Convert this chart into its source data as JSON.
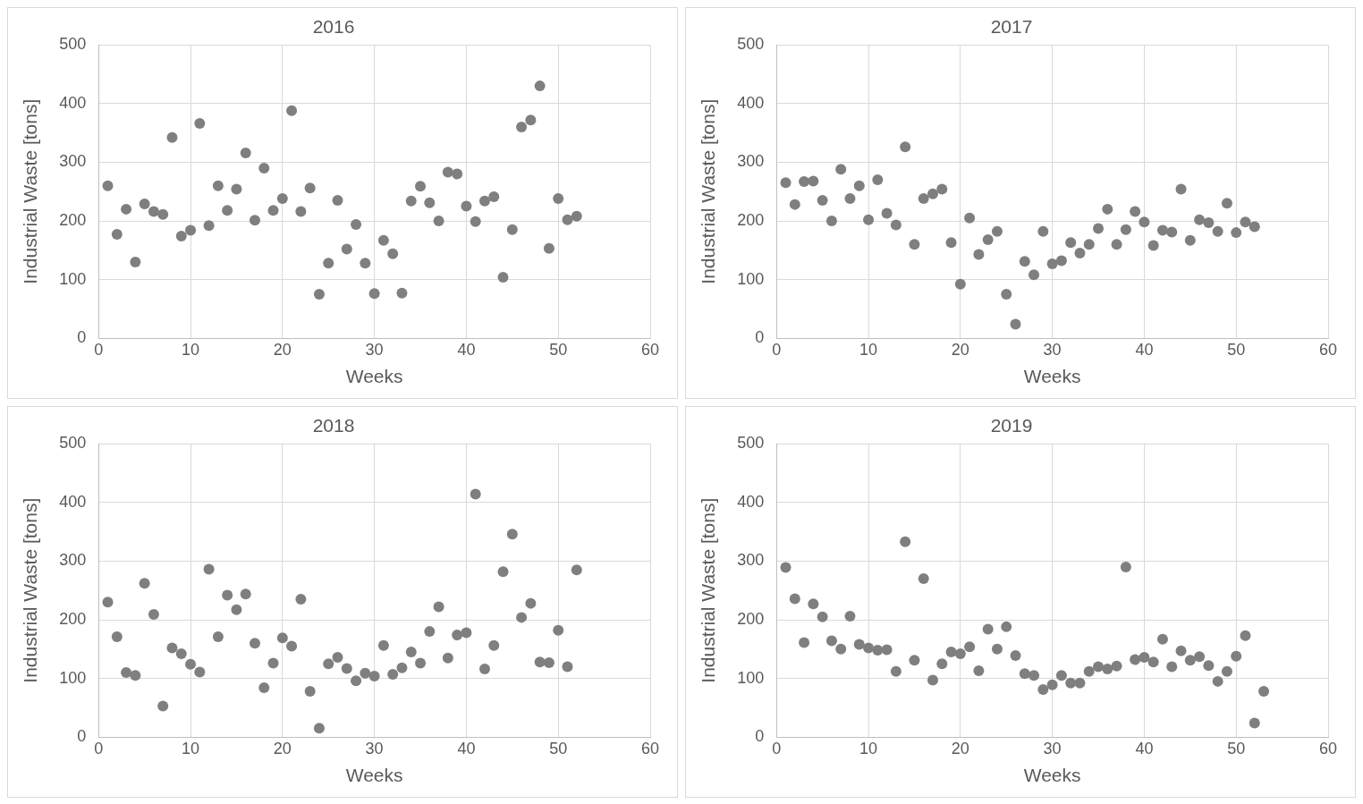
{
  "chart_data": [
    {
      "type": "scatter",
      "title": "2016",
      "xlabel": "Weeks",
      "ylabel": "Industrial Waste [tons]",
      "xlim": [
        0,
        60
      ],
      "xticks": [
        0,
        10,
        20,
        30,
        40,
        50,
        60
      ],
      "ylim": [
        0,
        500
      ],
      "yticks": [
        0,
        100,
        200,
        300,
        400,
        500
      ],
      "grid": true,
      "legend": false,
      "marker": "circle",
      "series": [
        {
          "color": "#7f7f7f",
          "x": [
            1,
            2,
            3,
            4,
            5,
            6,
            7,
            8,
            9,
            10,
            11,
            12,
            13,
            14,
            15,
            16,
            17,
            18,
            19,
            20,
            21,
            22,
            23,
            24,
            25,
            26,
            27,
            28,
            29,
            30,
            31,
            32,
            33,
            34,
            35,
            36,
            37,
            38,
            39,
            40,
            41,
            42,
            43,
            44,
            45,
            46,
            47,
            48,
            49,
            50,
            51,
            52
          ],
          "values": [
            260,
            177,
            220,
            130,
            229,
            216,
            211,
            342,
            174,
            184,
            366,
            192,
            260,
            218,
            254,
            316,
            201,
            290,
            218,
            238,
            388,
            216,
            256,
            75,
            128,
            235,
            152,
            194,
            128,
            76,
            167,
            144,
            77,
            234,
            259,
            231,
            200,
            283,
            280,
            225,
            199,
            234,
            241,
            104,
            185,
            360,
            372,
            430,
            153,
            238,
            202,
            208
          ]
        }
      ]
    },
    {
      "type": "scatter",
      "title": "2017",
      "xlabel": "Weeks",
      "ylabel": "Industrial Waste [tons]",
      "xlim": [
        0,
        60
      ],
      "xticks": [
        0,
        10,
        20,
        30,
        40,
        50,
        60
      ],
      "ylim": [
        0,
        500
      ],
      "yticks": [
        0,
        100,
        200,
        300,
        400,
        500
      ],
      "grid": true,
      "legend": false,
      "marker": "circle",
      "series": [
        {
          "color": "#7f7f7f",
          "x": [
            1,
            2,
            3,
            4,
            5,
            6,
            7,
            8,
            9,
            10,
            11,
            12,
            13,
            14,
            15,
            16,
            17,
            18,
            19,
            20,
            21,
            22,
            23,
            24,
            25,
            26,
            27,
            28,
            29,
            30,
            31,
            32,
            33,
            34,
            35,
            36,
            37,
            38,
            39,
            40,
            41,
            42,
            43,
            44,
            45,
            46,
            47,
            48,
            49,
            50,
            51,
            52
          ],
          "values": [
            265,
            228,
            267,
            268,
            235,
            200,
            288,
            238,
            260,
            202,
            270,
            213,
            193,
            326,
            160,
            238,
            246,
            254,
            163,
            92,
            205,
            143,
            168,
            182,
            75,
            24,
            131,
            108,
            182,
            127,
            132,
            163,
            145,
            160,
            187,
            220,
            160,
            185,
            216,
            198,
            158,
            184,
            181,
            254,
            167,
            202,
            197,
            182,
            230,
            180,
            198,
            190
          ]
        }
      ]
    },
    {
      "type": "scatter",
      "title": "2018",
      "xlabel": "Weeks",
      "ylabel": "Industrial Waste [tons]",
      "xlim": [
        0,
        60
      ],
      "xticks": [
        0,
        10,
        20,
        30,
        40,
        50,
        60
      ],
      "ylim": [
        0,
        500
      ],
      "yticks": [
        0,
        100,
        200,
        300,
        400,
        500
      ],
      "grid": true,
      "legend": false,
      "marker": "circle",
      "series": [
        {
          "color": "#7f7f7f",
          "x": [
            1,
            2,
            3,
            4,
            5,
            6,
            7,
            8,
            9,
            10,
            11,
            12,
            13,
            14,
            15,
            16,
            17,
            18,
            19,
            20,
            21,
            22,
            23,
            24,
            25,
            26,
            27,
            28,
            29,
            30,
            31,
            32,
            33,
            34,
            35,
            36,
            37,
            38,
            39,
            40,
            41,
            42,
            43,
            44,
            45,
            46,
            47,
            48,
            49,
            50,
            51,
            52
          ],
          "values": [
            230,
            171,
            110,
            105,
            262,
            209,
            53,
            152,
            142,
            124,
            111,
            286,
            171,
            242,
            217,
            244,
            160,
            84,
            126,
            169,
            155,
            235,
            78,
            15,
            125,
            136,
            117,
            96,
            109,
            104,
            156,
            107,
            118,
            145,
            126,
            180,
            222,
            135,
            174,
            178,
            414,
            116,
            156,
            282,
            346,
            204,
            228,
            128,
            127,
            182,
            120,
            285
          ]
        }
      ]
    },
    {
      "type": "scatter",
      "title": "2019",
      "xlabel": "Weeks",
      "ylabel": "Industrial Waste [tons]",
      "xlim": [
        0,
        60
      ],
      "xticks": [
        0,
        10,
        20,
        30,
        40,
        50,
        60
      ],
      "ylim": [
        0,
        500
      ],
      "yticks": [
        0,
        100,
        200,
        300,
        400,
        500
      ],
      "grid": true,
      "legend": false,
      "marker": "circle",
      "series": [
        {
          "color": "#7f7f7f",
          "x": [
            1,
            2,
            3,
            4,
            5,
            6,
            7,
            8,
            9,
            10,
            11,
            12,
            13,
            14,
            15,
            16,
            17,
            18,
            19,
            20,
            21,
            22,
            23,
            24,
            25,
            26,
            27,
            28,
            29,
            30,
            31,
            32,
            33,
            34,
            35,
            36,
            37,
            38,
            39,
            40,
            41,
            42,
            43,
            44,
            45,
            46,
            47,
            48,
            49,
            50,
            51,
            52,
            53
          ],
          "values": [
            289,
            236,
            161,
            227,
            205,
            164,
            150,
            206,
            158,
            152,
            148,
            149,
            112,
            333,
            131,
            270,
            97,
            125,
            145,
            142,
            154,
            113,
            184,
            150,
            188,
            139,
            108,
            105,
            81,
            89,
            105,
            92,
            92,
            112,
            120,
            116,
            121,
            290,
            132,
            136,
            128,
            167,
            120,
            147,
            131,
            137,
            122,
            95,
            112,
            138,
            173,
            24,
            78
          ]
        }
      ]
    }
  ]
}
